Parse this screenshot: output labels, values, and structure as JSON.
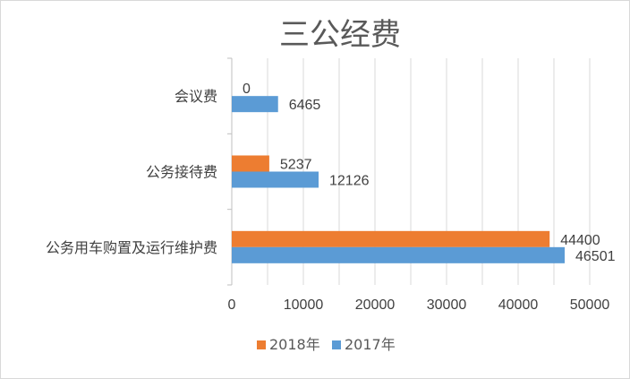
{
  "chart_data": {
    "type": "bar",
    "orientation": "horizontal",
    "title": "三公经费",
    "categories": [
      "会议费",
      "公务接待费",
      "公务用车购置及运行维护费"
    ],
    "series": [
      {
        "name": "2018年",
        "values": [
          0,
          5237,
          44400
        ],
        "color": "#ED7D31"
      },
      {
        "name": "2017年",
        "values": [
          6465,
          12126,
          46501
        ],
        "color": "#5B9BD5"
      }
    ],
    "x_ticks": [
      "0",
      "10000",
      "20000",
      "30000",
      "40000",
      "50000"
    ],
    "xlim": [
      0,
      50000
    ],
    "grid": true,
    "legend_position": "bottom"
  }
}
